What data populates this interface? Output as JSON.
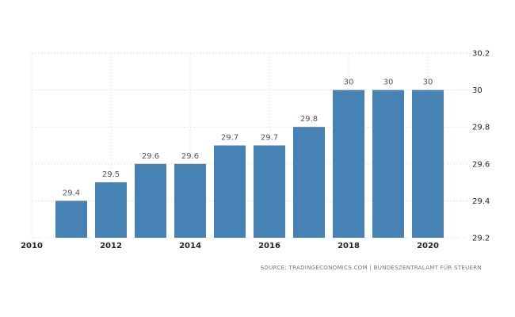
{
  "chart_data": {
    "type": "bar",
    "x": [
      2011,
      2012,
      2013,
      2014,
      2015,
      2016,
      2017,
      2018,
      2019,
      2020
    ],
    "values": [
      29.4,
      29.5,
      29.6,
      29.6,
      29.7,
      29.7,
      29.8,
      30,
      30,
      30
    ],
    "data_labels": [
      "29.4",
      "29.5",
      "29.6",
      "29.6",
      "29.7",
      "29.7",
      "29.8",
      "30",
      "30",
      "30"
    ],
    "x_ticks": [
      "2010",
      "2012",
      "2014",
      "2016",
      "2018",
      "2020"
    ],
    "y_ticks": [
      "29.2",
      "29.4",
      "29.6",
      "29.8",
      "30",
      "30.2"
    ],
    "xlim": [
      2010,
      2021
    ],
    "ylim": [
      29.2,
      30.2
    ],
    "y_axis_position": "right",
    "grid": true,
    "title": "",
    "xlabel": "",
    "ylabel": "",
    "colors": {
      "bar": "#4682b4"
    }
  },
  "source": {
    "text": "SOURCE: TRADINGECONOMICS.COM | BUNDESZENTRALAMT FÜR STEUERN"
  }
}
